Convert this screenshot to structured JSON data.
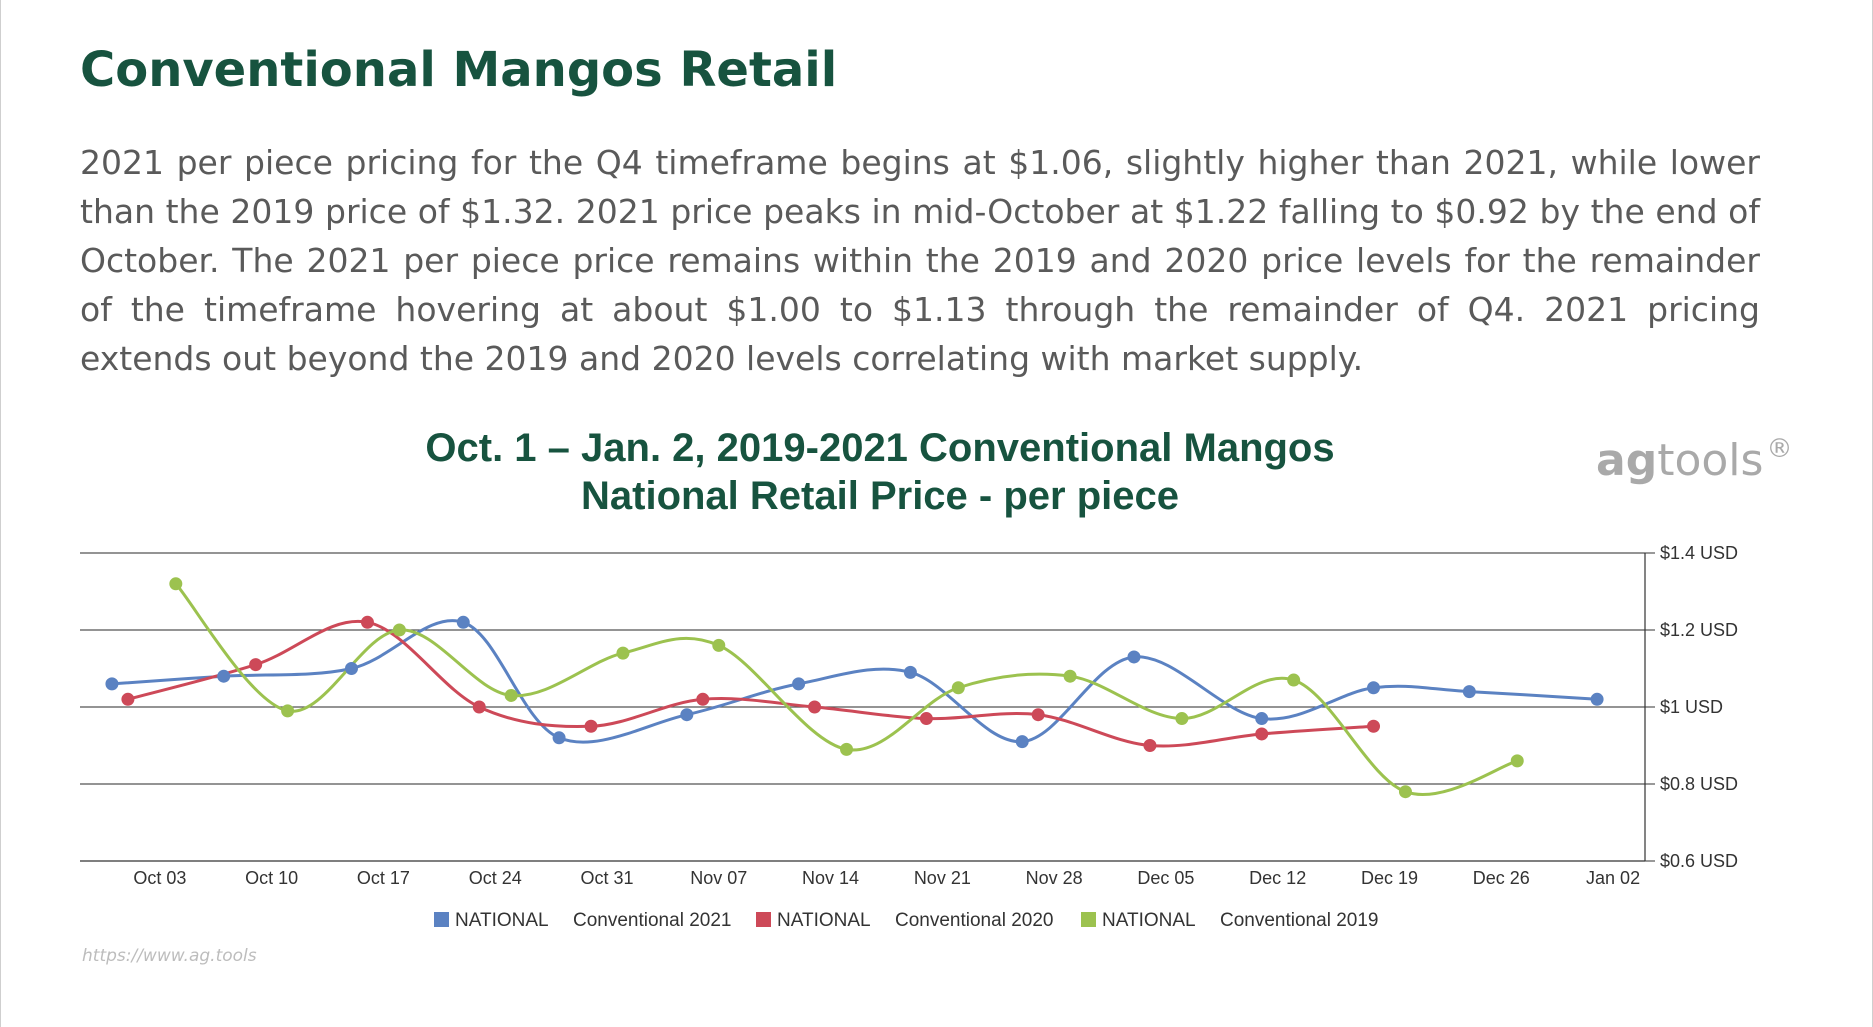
{
  "page": {
    "title": "Conventional Mangos Retail",
    "summary": "2021 per piece pricing for the Q4 timeframe begins at $1.06, slightly higher than 2021, while lower than the 2019 price of $1.32.  2021 price peaks in mid-October at $1.22 falling to $0.92 by the end of October. The 2021 per piece price remains within the 2019 and 2020 price levels for the remainder of the timeframe hovering at about $1.00 to $1.13 through the remainder of Q4.  2021 pricing extends out beyond the 2019 and 2020 levels correlating with market supply.",
    "logo": {
      "ag": "ag",
      "tools": "tools",
      "mark": "®"
    },
    "source_url": "https://www.ag.tools"
  },
  "chart_data": {
    "type": "line",
    "title_line1": "Oct. 1 – Jan. 2, 2019-2021 Conventional Mangos",
    "title_line2": "National Retail Price - per piece",
    "x_ticks": [
      "Oct 03",
      "Oct 10",
      "Oct 17",
      "Oct 24",
      "Oct 31",
      "Nov 07",
      "Nov 14",
      "Nov 21",
      "Nov 28",
      "Dec 05",
      "Dec 12",
      "Dec 19",
      "Dec 26",
      "Jan 02"
    ],
    "x_range": [
      "2021-09-28",
      "2022-01-04"
    ],
    "y_ticks": [
      "$1.4 USD",
      "$1.2 USD",
      "$1 USD",
      "$0.8 USD",
      "$0.6 USD"
    ],
    "y_tick_values": [
      1.4,
      1.2,
      1.0,
      0.8,
      0.6
    ],
    "ylim": [
      0.6,
      1.4
    ],
    "y_axis_position": "right",
    "grid": true,
    "legend_position": "bottom",
    "series": [
      {
        "name": "NATIONAL",
        "label": "Conventional 2021",
        "color": "#5b82c2",
        "points": [
          {
            "x": "2021-09-30",
            "y": 1.06
          },
          {
            "x": "2021-10-07",
            "y": 1.08
          },
          {
            "x": "2021-10-15",
            "y": 1.1
          },
          {
            "x": "2021-10-22",
            "y": 1.22
          },
          {
            "x": "2021-10-28",
            "y": 0.92
          },
          {
            "x": "2021-11-05",
            "y": 0.98
          },
          {
            "x": "2021-11-12",
            "y": 1.06
          },
          {
            "x": "2021-11-19",
            "y": 1.09
          },
          {
            "x": "2021-11-26",
            "y": 0.91
          },
          {
            "x": "2021-12-03",
            "y": 1.13
          },
          {
            "x": "2021-12-11",
            "y": 0.97
          },
          {
            "x": "2021-12-18",
            "y": 1.05
          },
          {
            "x": "2021-12-24",
            "y": 1.04
          },
          {
            "x": "2022-01-01",
            "y": 1.02
          }
        ]
      },
      {
        "name": "NATIONAL",
        "label": "Conventional 2020",
        "color": "#cd4958",
        "points": [
          {
            "x": "2021-10-01",
            "y": 1.02
          },
          {
            "x": "2021-10-09",
            "y": 1.11
          },
          {
            "x": "2021-10-16",
            "y": 1.22
          },
          {
            "x": "2021-10-23",
            "y": 1.0
          },
          {
            "x": "2021-10-30",
            "y": 0.95
          },
          {
            "x": "2021-11-06",
            "y": 1.02
          },
          {
            "x": "2021-11-13",
            "y": 1.0
          },
          {
            "x": "2021-11-20",
            "y": 0.97
          },
          {
            "x": "2021-11-27",
            "y": 0.98
          },
          {
            "x": "2021-12-04",
            "y": 0.9
          },
          {
            "x": "2021-12-11",
            "y": 0.93
          },
          {
            "x": "2021-12-18",
            "y": 0.95
          }
        ]
      },
      {
        "name": "NATIONAL",
        "label": "Conventional 2019",
        "color": "#9cc24f",
        "points": [
          {
            "x": "2021-10-04",
            "y": 1.32
          },
          {
            "x": "2021-10-11",
            "y": 0.99
          },
          {
            "x": "2021-10-18",
            "y": 1.2
          },
          {
            "x": "2021-10-25",
            "y": 1.03
          },
          {
            "x": "2021-11-01",
            "y": 1.14
          },
          {
            "x": "2021-11-07",
            "y": 1.16
          },
          {
            "x": "2021-11-15",
            "y": 0.89
          },
          {
            "x": "2021-11-22",
            "y": 1.05
          },
          {
            "x": "2021-11-29",
            "y": 1.08
          },
          {
            "x": "2021-12-06",
            "y": 0.97
          },
          {
            "x": "2021-12-13",
            "y": 1.07
          },
          {
            "x": "2021-12-20",
            "y": 0.78
          },
          {
            "x": "2021-12-27",
            "y": 0.86
          }
        ]
      }
    ]
  }
}
